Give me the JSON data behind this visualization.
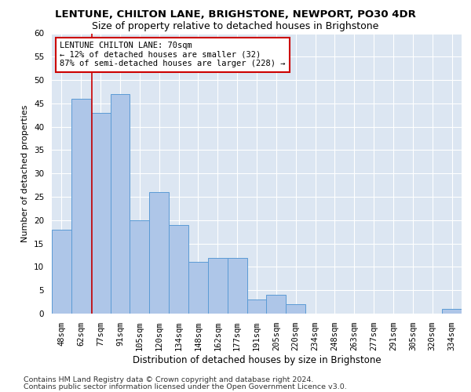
{
  "title": "LENTUNE, CHILTON LANE, BRIGHSTONE, NEWPORT, PO30 4DR",
  "subtitle": "Size of property relative to detached houses in Brighstone",
  "xlabel": "Distribution of detached houses by size in Brighstone",
  "ylabel": "Number of detached properties",
  "categories": [
    "48sqm",
    "62sqm",
    "77sqm",
    "91sqm",
    "105sqm",
    "120sqm",
    "134sqm",
    "148sqm",
    "162sqm",
    "177sqm",
    "191sqm",
    "205sqm",
    "220sqm",
    "234sqm",
    "248sqm",
    "263sqm",
    "277sqm",
    "291sqm",
    "305sqm",
    "320sqm",
    "334sqm"
  ],
  "values": [
    18,
    46,
    43,
    47,
    20,
    26,
    19,
    11,
    12,
    12,
    3,
    4,
    2,
    0,
    0,
    0,
    0,
    0,
    0,
    0,
    1
  ],
  "bar_color": "#aec6e8",
  "bar_edge_color": "#5b9bd5",
  "marker_label": "LENTUNE CHILTON LANE: 70sqm",
  "marker_smaller": "← 12% of detached houses are smaller (32)",
  "marker_larger": "87% of semi-detached houses are larger (228) →",
  "marker_color": "#cc0000",
  "annotation_box_color": "#ffffff",
  "annotation_box_edge": "#cc0000",
  "ylim": [
    0,
    60
  ],
  "yticks": [
    0,
    5,
    10,
    15,
    20,
    25,
    30,
    35,
    40,
    45,
    50,
    55,
    60
  ],
  "bg_color": "#dce6f2",
  "grid_color": "#ffffff",
  "footer1": "Contains HM Land Registry data © Crown copyright and database right 2024.",
  "footer2": "Contains public sector information licensed under the Open Government Licence v3.0.",
  "title_fontsize": 9.5,
  "subtitle_fontsize": 9,
  "xlabel_fontsize": 8.5,
  "ylabel_fontsize": 8,
  "tick_fontsize": 7.5,
  "footer_fontsize": 6.8,
  "annot_fontsize": 7.5
}
